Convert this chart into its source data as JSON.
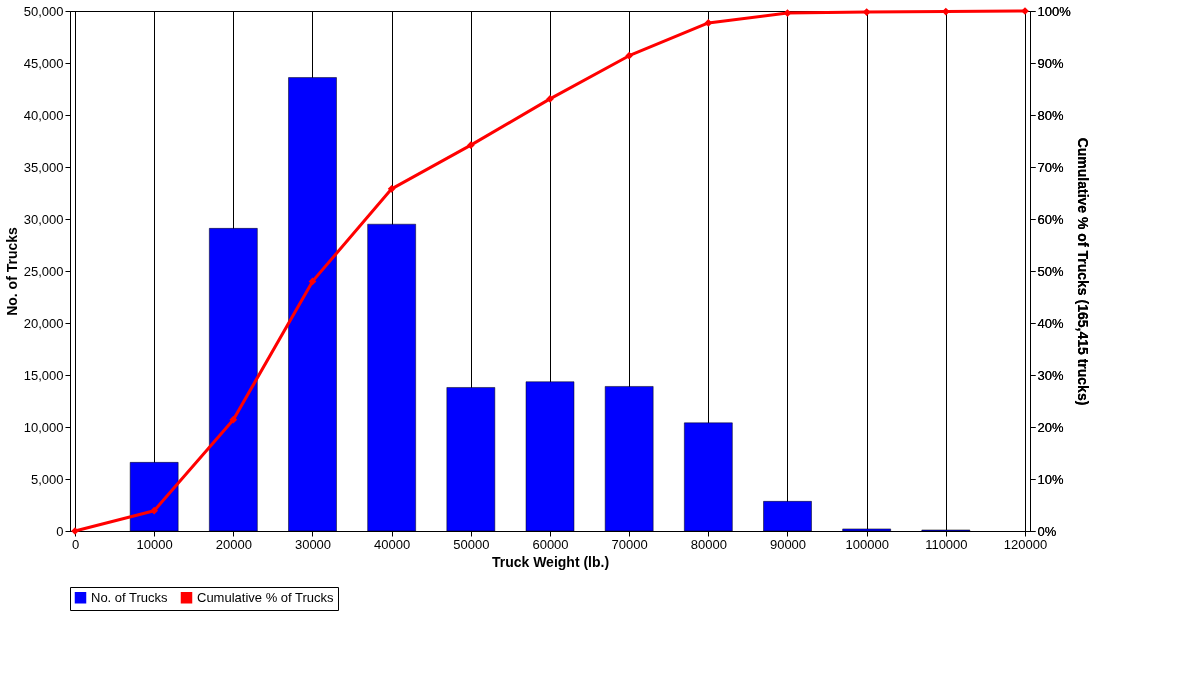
{
  "chart_data": {
    "type": "bar",
    "xlabel": "Truck Weight (lb.)",
    "ylabel": "No. of Trucks",
    "y2label": "Cumulative % of Trucks  (165,415 trucks)",
    "series": [
      {
        "name": "No. of Trucks",
        "color": "#0000ff",
        "x": [
          10000,
          20000,
          30000,
          40000,
          50000,
          60000,
          70000,
          80000,
          90000,
          100000,
          110000
        ],
        "values": [
          6600,
          29100,
          43600,
          29500,
          13800,
          14350,
          13900,
          10400,
          2850,
          200,
          100
        ]
      },
      {
        "name": "Cumulative % of Trucks",
        "type": "line",
        "axis": "y2",
        "color": "#ff0000",
        "x": [
          0,
          10000,
          20000,
          30000,
          40000,
          50000,
          60000,
          70000,
          80000,
          90000,
          100000,
          110000,
          120000
        ],
        "values": [
          0,
          3.9,
          21.4,
          48,
          65.8,
          74.2,
          83.1,
          91.4,
          97.7,
          99.6,
          99.8,
          99.9,
          100
        ]
      }
    ],
    "xlim": [
      0,
      120000
    ],
    "xticks": [
      0,
      10000,
      20000,
      30000,
      40000,
      50000,
      60000,
      70000,
      80000,
      90000,
      100000,
      110000,
      120000
    ],
    "ylim": [
      0,
      50000
    ],
    "yticks": [
      0,
      {
        "value": 5000,
        "label": "5,000"
      },
      {
        "value": 10000,
        "label": "10,000"
      },
      {
        "value": 15000,
        "label": "15,000"
      },
      {
        "value": 20000,
        "label": "20,000"
      },
      {
        "value": 25000,
        "label": "25,000"
      },
      {
        "value": 30000,
        "label": "30,000"
      },
      {
        "value": 35000,
        "label": "35,000"
      },
      {
        "value": 40000,
        "label": "40,000"
      },
      {
        "value": 45000,
        "label": "45,000"
      },
      {
        "value": 50000,
        "label": "50,000"
      }
    ],
    "y2lim": [
      0,
      100
    ],
    "y2ticks": [
      {
        "value": 0,
        "label": "0%"
      },
      {
        "value": 10,
        "label": "10%"
      },
      {
        "value": 20,
        "label": "20%"
      },
      {
        "value": 30,
        "label": "30%"
      },
      {
        "value": 40,
        "label": "40%"
      },
      {
        "value": 50,
        "label": "50%"
      },
      {
        "value": 60,
        "label": "60%"
      },
      {
        "value": 70,
        "label": "70%"
      },
      {
        "value": 80,
        "label": "80%"
      },
      {
        "value": 90,
        "label": "90%"
      },
      {
        "value": 100,
        "label": "100%"
      }
    ],
    "grid": "x",
    "legend": "bottom",
    "marker": "diamond",
    "line_style": "solid"
  }
}
